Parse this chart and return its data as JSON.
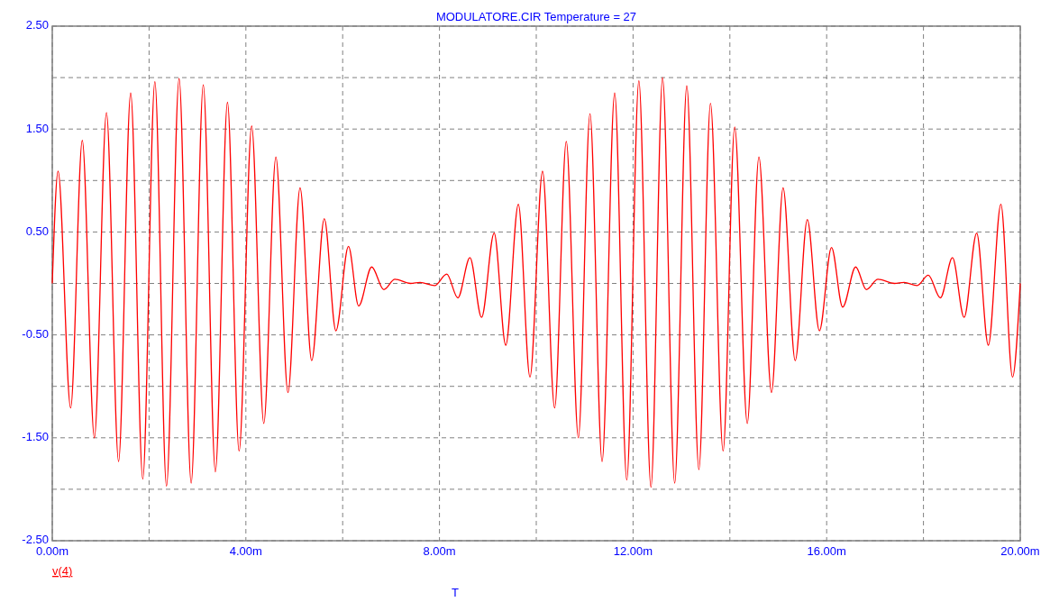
{
  "chart_data": {
    "type": "line",
    "title": "MODULATORE.CIR Temperature = 27",
    "xlabel": "T",
    "xlim": [
      0,
      20
    ],
    "ylim": [
      -2.5,
      2.5
    ],
    "xticks": [
      {
        "value": 0,
        "label": "0.00m"
      },
      {
        "value": 2,
        "label": null
      },
      {
        "value": 4,
        "label": "4.00m"
      },
      {
        "value": 6,
        "label": null
      },
      {
        "value": 8,
        "label": "8.00m"
      },
      {
        "value": 10,
        "label": null
      },
      {
        "value": 12,
        "label": "12.00m"
      },
      {
        "value": 14,
        "label": null
      },
      {
        "value": 16,
        "label": "16.00m"
      },
      {
        "value": 18,
        "label": null
      },
      {
        "value": 20,
        "label": "20.00m"
      }
    ],
    "yticks": [
      {
        "value": 2.5,
        "label": "2.50"
      },
      {
        "value": 2,
        "label": null
      },
      {
        "value": 1.5,
        "label": "1.50"
      },
      {
        "value": 1,
        "label": null
      },
      {
        "value": 0.5,
        "label": "0.50"
      },
      {
        "value": 0,
        "label": null
      },
      {
        "value": -0.5,
        "label": "-0.50"
      },
      {
        "value": -1,
        "label": null
      },
      {
        "value": -1.5,
        "label": "-1.50"
      },
      {
        "value": -2,
        "label": null
      },
      {
        "value": -2.5,
        "label": "-2.50"
      }
    ],
    "grid": true,
    "legend": "bottom left",
    "marker": "none",
    "line_style": "solid",
    "series": [
      {
        "name": "v(4)",
        "color": "#ff0000",
        "x": [
          0,
          0.12,
          0.38,
          0.62,
          0.87,
          1.12,
          1.37,
          1.62,
          1.87,
          2.12,
          2.36,
          2.62,
          2.87,
          3.12,
          3.37,
          3.62,
          3.86,
          4.12,
          4.37,
          4.62,
          4.87,
          5.12,
          5.36,
          5.62,
          5.86,
          6.12,
          6.33,
          6.6,
          6.85,
          7.08,
          7.4,
          7.6,
          7.9,
          8.15,
          8.38,
          8.63,
          8.87,
          9.13,
          9.37,
          9.63,
          9.87,
          10.13,
          10.38,
          10.62,
          10.87,
          11.11,
          11.36,
          11.62,
          11.87,
          12.12,
          12.37,
          12.61,
          12.86,
          13.11,
          13.36,
          13.6,
          13.86,
          14.1,
          14.36,
          14.6,
          14.86,
          15.1,
          15.35,
          15.6,
          15.85,
          16.1,
          16.33,
          16.6,
          16.82,
          17.06,
          17.4,
          17.6,
          17.87,
          18.1,
          18.35,
          18.6,
          18.84,
          19.1,
          19.34,
          19.6,
          19.84,
          20
        ],
        "values": [
          0,
          1.09,
          -1.21,
          1.39,
          -1.5,
          1.66,
          -1.73,
          1.85,
          -1.9,
          1.96,
          -1.97,
          1.99,
          -1.94,
          1.93,
          -1.83,
          1.76,
          -1.63,
          1.53,
          -1.36,
          1.23,
          -1.06,
          0.93,
          -0.75,
          0.63,
          -0.46,
          0.36,
          -0.22,
          0.16,
          -0.06,
          0.04,
          0,
          0.01,
          -0.02,
          0.09,
          -0.14,
          0.25,
          -0.33,
          0.49,
          -0.6,
          0.77,
          -0.91,
          1.09,
          -1.21,
          1.38,
          -1.5,
          1.65,
          -1.73,
          1.85,
          -1.91,
          1.97,
          -1.98,
          2,
          -1.94,
          1.92,
          -1.81,
          1.75,
          -1.63,
          1.52,
          -1.36,
          1.23,
          -1.06,
          0.93,
          -0.75,
          0.62,
          -0.46,
          0.35,
          -0.23,
          0.16,
          -0.06,
          0.04,
          0,
          0.01,
          -0.02,
          0.08,
          -0.14,
          0.25,
          -0.33,
          0.49,
          -0.6,
          0.77,
          -0.91,
          0
        ]
      }
    ]
  }
}
